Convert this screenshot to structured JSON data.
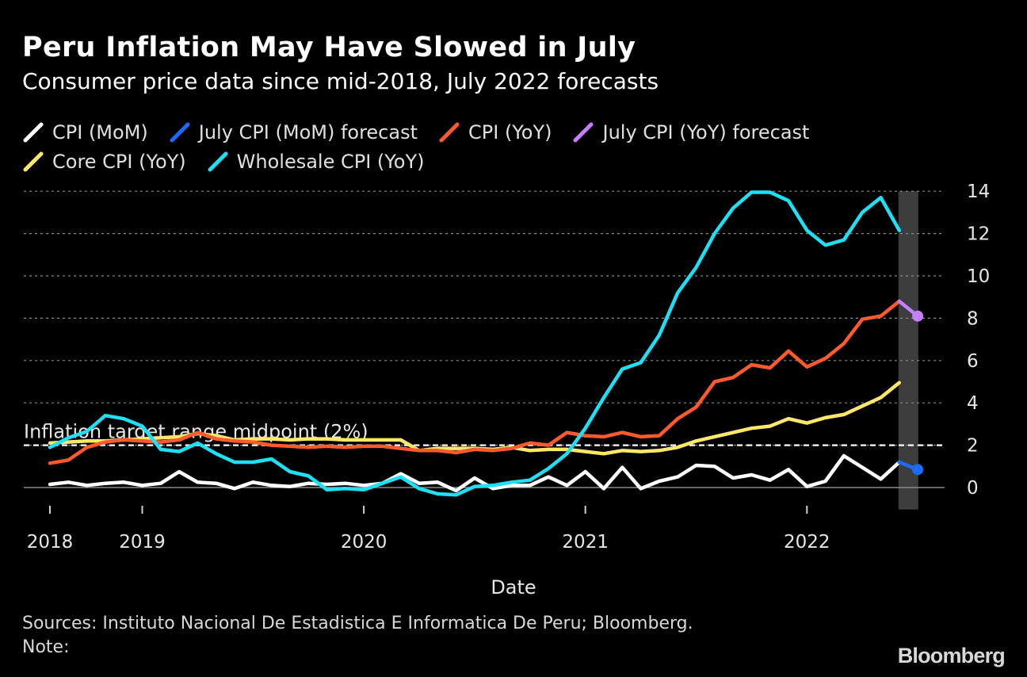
{
  "header": {
    "title": "Peru Inflation May Have Slowed in July",
    "subtitle": "Consumer price data since mid-2018, July 2022 forecasts"
  },
  "legend": [
    {
      "label": "CPI (MoM)",
      "color": "#ffffff"
    },
    {
      "label": "July CPI (MoM) forecast",
      "color": "#1a6cff"
    },
    {
      "label": "CPI (YoY)",
      "color": "#ff5a2c"
    },
    {
      "label": "July CPI (YoY) forecast",
      "color": "#c77dff"
    },
    {
      "label": "Core CPI (YoY)",
      "color": "#ffe76a"
    },
    {
      "label": "Wholesale CPI (YoY)",
      "color": "#1ee0f5"
    }
  ],
  "footer": {
    "sources": "Sources: Instituto Nacional De Estadistica E Informatica De Peru; Bloomberg.",
    "note": "Note:",
    "brand": "Bloomberg"
  },
  "chart_data": {
    "type": "line",
    "xlabel": "Date",
    "ylabel": "",
    "x_start": "2018-06",
    "x_ticks": [
      {
        "label": "2018",
        "month_index": 0
      },
      {
        "label": "2019",
        "month_index": 5
      },
      {
        "label": "2020",
        "month_index": 17
      },
      {
        "label": "2021",
        "month_index": 29
      },
      {
        "label": "2022",
        "month_index": 41
      }
    ],
    "ylim": [
      -1,
      14
    ],
    "y_ticks": [
      0,
      2,
      4,
      6,
      8,
      10,
      12,
      14
    ],
    "grid": true,
    "reference_line": {
      "value": 2,
      "label": "Inflation target range midpoint (2%)"
    },
    "highlight_band": {
      "from_month_index": 46,
      "to_month_index": 47
    },
    "series": [
      {
        "name": "CPI (MoM)",
        "color": "#ffffff",
        "values": [
          0.15,
          0.25,
          0.1,
          0.2,
          0.25,
          0.1,
          0.2,
          0.75,
          0.25,
          0.2,
          -0.05,
          0.25,
          0.1,
          0.05,
          0.2,
          0.15,
          0.2,
          0.1,
          0.2,
          0.65,
          0.2,
          0.25,
          -0.15,
          0.45,
          -0.05,
          0.1,
          0.1,
          0.5,
          0.1,
          0.75,
          -0.05,
          0.95,
          -0.05,
          0.3,
          0.5,
          1.05,
          1.0,
          0.45,
          0.6,
          0.35,
          0.85,
          0.05,
          0.3,
          1.5,
          0.95,
          0.4,
          1.2
        ]
      },
      {
        "name": "July CPI (MoM) forecast",
        "color": "#1a6cff",
        "values": [
          1.2,
          0.85
        ],
        "start_month_index": 46
      },
      {
        "name": "CPI (YoY)",
        "color": "#ff5a2c",
        "values": [
          1.15,
          1.3,
          1.9,
          2.15,
          2.25,
          2.2,
          2.15,
          2.25,
          2.6,
          2.3,
          2.2,
          2.15,
          2.0,
          1.95,
          1.9,
          1.95,
          1.9,
          1.95,
          1.95,
          1.85,
          1.75,
          1.75,
          1.65,
          1.8,
          1.75,
          1.85,
          2.1,
          2.0,
          2.6,
          2.45,
          2.4,
          2.6,
          2.4,
          2.45,
          3.25,
          3.8,
          5.0,
          5.2,
          5.8,
          5.65,
          6.45,
          5.7,
          6.1,
          6.8,
          7.95,
          8.1,
          8.8
        ]
      },
      {
        "name": "July CPI (YoY) forecast",
        "color": "#c77dff",
        "values": [
          8.8,
          8.1
        ],
        "start_month_index": 46
      },
      {
        "name": "Core CPI (YoY)",
        "color": "#ffe76a",
        "values": [
          2.1,
          2.15,
          2.2,
          2.2,
          2.25,
          2.3,
          2.35,
          2.4,
          2.55,
          2.45,
          2.25,
          2.3,
          2.3,
          2.25,
          2.3,
          2.3,
          2.25,
          2.25,
          2.25,
          2.25,
          1.75,
          1.85,
          1.85,
          1.85,
          1.8,
          1.9,
          1.75,
          1.8,
          1.8,
          1.7,
          1.6,
          1.75,
          1.7,
          1.75,
          1.9,
          2.2,
          2.4,
          2.6,
          2.8,
          2.9,
          3.25,
          3.05,
          3.3,
          3.45,
          3.85,
          4.25,
          4.95
        ]
      },
      {
        "name": "Wholesale CPI (YoY)",
        "color": "#1ee0f5",
        "values": [
          1.9,
          2.35,
          2.65,
          3.4,
          3.25,
          2.9,
          1.8,
          1.7,
          2.1,
          1.6,
          1.2,
          1.2,
          1.35,
          0.75,
          0.55,
          -0.1,
          -0.05,
          -0.1,
          0.2,
          0.5,
          -0.05,
          -0.3,
          -0.35,
          0.05,
          0.1,
          0.25,
          0.35,
          0.9,
          1.6,
          2.8,
          4.25,
          5.6,
          5.9,
          7.2,
          9.2,
          10.4,
          12.0,
          13.2,
          13.95,
          13.95,
          13.55,
          12.15,
          11.45,
          11.7,
          13.0,
          13.7,
          12.15
        ]
      }
    ]
  }
}
